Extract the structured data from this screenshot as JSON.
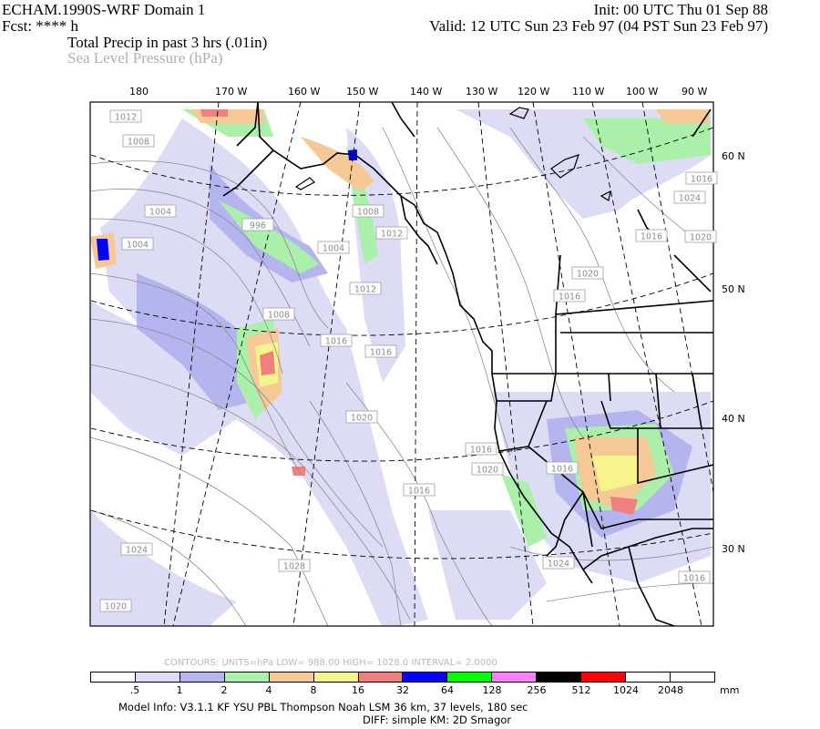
{
  "header": {
    "model_title": "ECHAM.1990S-WRF Domain 1",
    "init": "Init: 00 UTC Thu 01 Sep 88",
    "fcst": "Fcst: **** h",
    "valid": "Valid: 12 UTC Sun 23 Feb 97 (04 PST Sun 23 Feb 97)",
    "field1": "Total Precip in past 3 hrs (.01in)",
    "field2": "Sea Level Pressure (hPa)"
  },
  "lon_labels": [
    "180",
    "170 W",
    "160 W",
    "150 W",
    "140 W",
    "130 W",
    "120 W",
    "110 W",
    "100 W",
    "90 W"
  ],
  "lat_labels": [
    "60 N",
    "50 N",
    "40 N",
    "30 N"
  ],
  "pressure_labels": [
    "1012",
    "1008",
    "1004",
    "1004",
    "996",
    "1004",
    "1008",
    "1012",
    "1012",
    "1008",
    "1016",
    "1016",
    "1020",
    "1020",
    "1016",
    "1016",
    "1020",
    "1020",
    "1024",
    "1016",
    "1016",
    "1016",
    "1016",
    "1024",
    "1028",
    "1020",
    "1024",
    "1016"
  ],
  "colorbar": {
    "colors": [
      "#ffffff",
      "#dcdcf5",
      "#b4b4ee",
      "#aaf0aa",
      "#f5c896",
      "#f5f58c",
      "#f08080",
      "#0000ff",
      "#00ff00",
      "#ff80ff",
      "#000000",
      "#ff0000",
      "#ffffff",
      "#ffffff"
    ],
    "ticks": [
      ".5",
      "1",
      "2",
      "4",
      "8",
      "16",
      "32",
      "64",
      "128",
      "256",
      "512",
      "1024",
      "2048"
    ],
    "unit": "mm"
  },
  "contour_note": "CONTOURS:  UNITS=hPa  LOW=  988.00          HIGH=  1028.0          INTERVAL=    2.0000",
  "footer": {
    "line1": "Model Info: V3.1.1    KF       YSU PBL   Thompson       Noah LSM   36 km,    37 levels,   180 sec",
    "line2": "DIFF: simple KM: 2D Smagor"
  }
}
